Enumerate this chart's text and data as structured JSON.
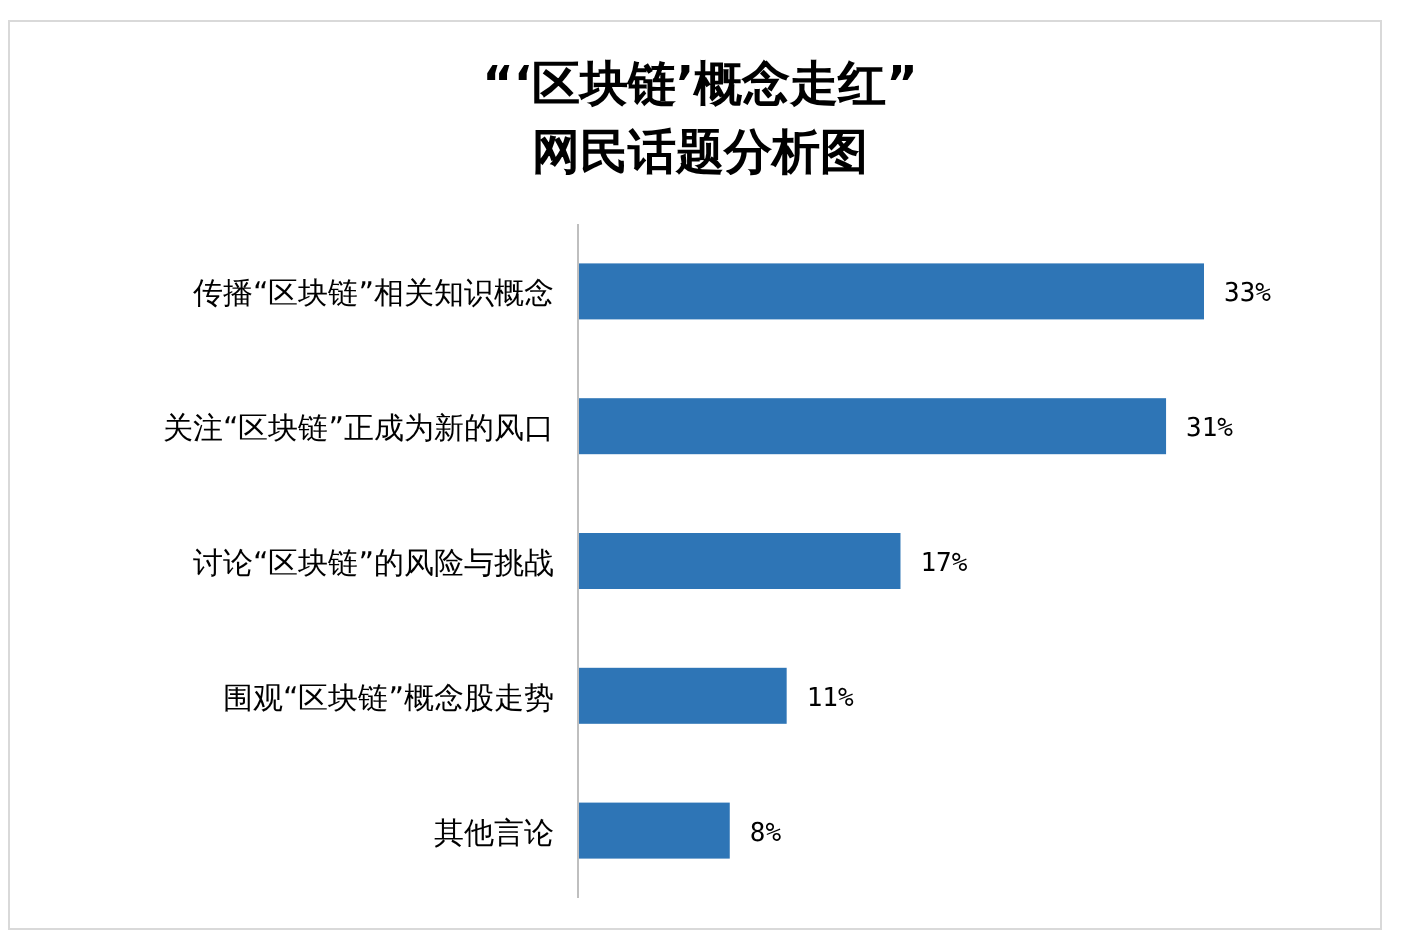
{
  "chart_data": {
    "type": "bar",
    "orientation": "horizontal",
    "title": "“‘区块链’概念走红”",
    "subtitle": "网民话题分析图",
    "categories": [
      "传播“区块链”相关知识概念",
      "关注“区块链”正成为新的风口",
      "讨论“区块链”的风险与挑战",
      "围观“区块链”概念股走势",
      "其他言论"
    ],
    "values": [
      33,
      31,
      17,
      11,
      8
    ],
    "value_labels": [
      "33%",
      "31%",
      "17%",
      "11%",
      "8%"
    ],
    "color": "#2e75b6"
  }
}
